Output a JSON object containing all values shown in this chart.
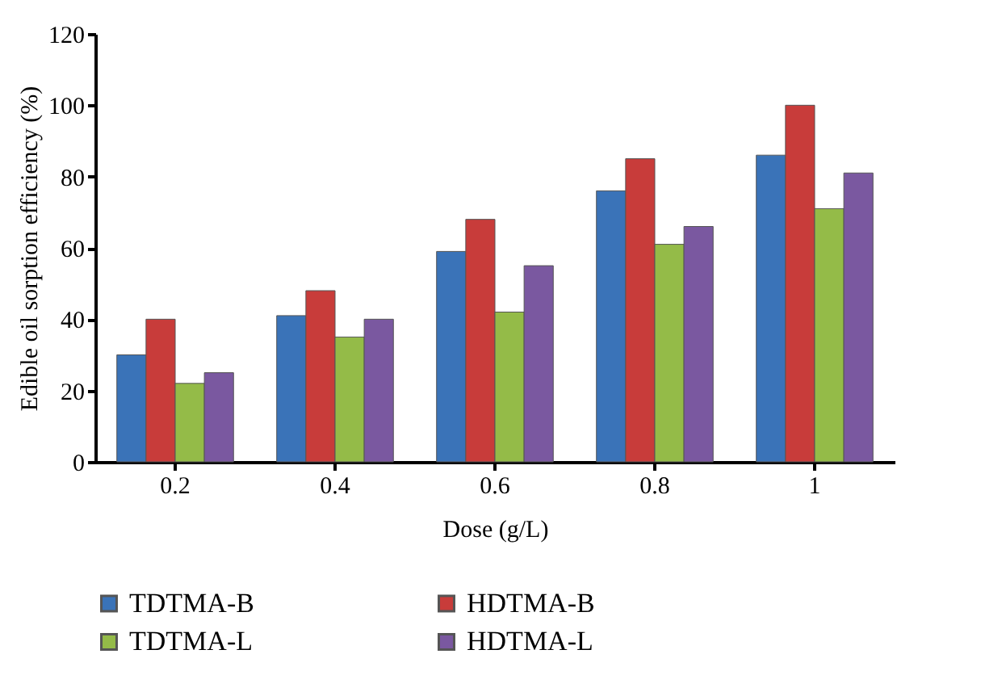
{
  "chart_data": {
    "type": "bar",
    "xlabel": "Dose (g/L)",
    "ylabel": "Edible oil sorption efficiency (%)",
    "categories": [
      "0.2",
      "0.4",
      "0.6",
      "0.8",
      "1"
    ],
    "series": [
      {
        "name": "TDTMA-B",
        "color": "#3a73b8",
        "values": [
          30,
          41,
          59,
          76,
          86
        ]
      },
      {
        "name": "HDTMA-B",
        "color": "#c83c3a",
        "values": [
          40,
          48,
          68,
          85,
          100
        ]
      },
      {
        "name": "TDTMA-L",
        "color": "#94bb48",
        "values": [
          22,
          35,
          42,
          61,
          71
        ]
      },
      {
        "name": "HDTMA-L",
        "color": "#7a58a0",
        "values": [
          25,
          40,
          55,
          66,
          81
        ]
      }
    ],
    "ylim": [
      0,
      120
    ],
    "yticks": [
      0,
      20,
      40,
      60,
      80,
      100,
      120
    ],
    "grid": false,
    "legend": "bottom"
  }
}
